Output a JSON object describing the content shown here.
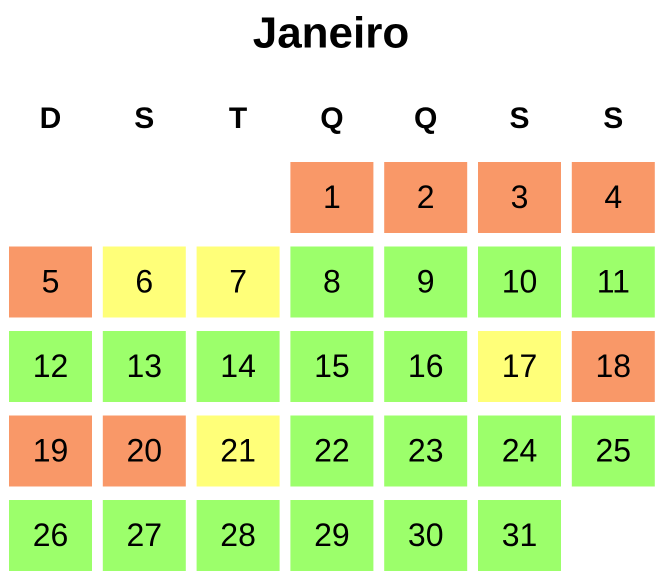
{
  "calendar": {
    "title": "Janeiro",
    "weekdays": [
      "D",
      "S",
      "T",
      "Q",
      "Q",
      "S",
      "S"
    ],
    "weeks": [
      [
        null,
        null,
        null,
        {
          "day": 1,
          "color": "#f99868"
        },
        {
          "day": 2,
          "color": "#f99868"
        },
        {
          "day": 3,
          "color": "#f99868"
        },
        {
          "day": 4,
          "color": "#f99868"
        }
      ],
      [
        {
          "day": 5,
          "color": "#f99868"
        },
        {
          "day": 6,
          "color": "#ffff79"
        },
        {
          "day": 7,
          "color": "#ffff79"
        },
        {
          "day": 8,
          "color": "#9cff6b"
        },
        {
          "day": 9,
          "color": "#9cff6b"
        },
        {
          "day": 10,
          "color": "#9cff6b"
        },
        {
          "day": 11,
          "color": "#9cff6b"
        }
      ],
      [
        {
          "day": 12,
          "color": "#9cff6b"
        },
        {
          "day": 13,
          "color": "#9cff6b"
        },
        {
          "day": 14,
          "color": "#9cff6b"
        },
        {
          "day": 15,
          "color": "#9cff6b"
        },
        {
          "day": 16,
          "color": "#9cff6b"
        },
        {
          "day": 17,
          "color": "#ffff79"
        },
        {
          "day": 18,
          "color": "#f99868"
        }
      ],
      [
        {
          "day": 19,
          "color": "#f99868"
        },
        {
          "day": 20,
          "color": "#f99868"
        },
        {
          "day": 21,
          "color": "#ffff79"
        },
        {
          "day": 22,
          "color": "#9cff6b"
        },
        {
          "day": 23,
          "color": "#9cff6b"
        },
        {
          "day": 24,
          "color": "#9cff6b"
        },
        {
          "day": 25,
          "color": "#9cff6b"
        }
      ],
      [
        {
          "day": 26,
          "color": "#9cff6b"
        },
        {
          "day": 27,
          "color": "#9cff6b"
        },
        {
          "day": 28,
          "color": "#9cff6b"
        },
        {
          "day": 29,
          "color": "#9cff6b"
        },
        {
          "day": 30,
          "color": "#9cff6b"
        },
        {
          "day": 31,
          "color": "#9cff6b"
        },
        null
      ]
    ]
  }
}
